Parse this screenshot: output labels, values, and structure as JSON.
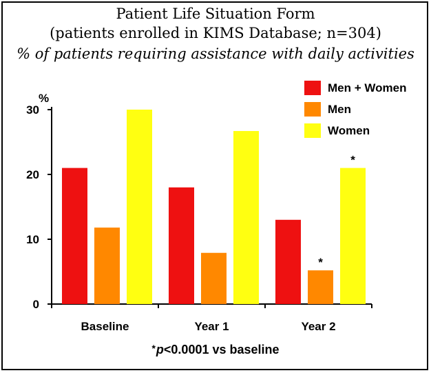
{
  "chart_data": {
    "type": "bar",
    "title": "Patient Life Situation Form",
    "subtitle": "(patients enrolled in KIMS Database; n=304)",
    "subtitle2": "% of patients requiring assistance with daily activities",
    "ylabel": "%",
    "xlabel": "",
    "categories": [
      "Baseline",
      "Year 1",
      "Year 2"
    ],
    "series": [
      {
        "name": "Men + Women",
        "color": "#ee1111",
        "values": [
          21,
          18,
          13
        ]
      },
      {
        "name": "Men",
        "color": "#ff8800",
        "values": [
          11.8,
          7.9,
          5.2
        ]
      },
      {
        "name": "Women",
        "color": "#ffff11",
        "values": [
          30,
          26.7,
          21
        ]
      }
    ],
    "ylim": [
      0,
      30
    ],
    "yticks": [
      "0",
      "10",
      "20",
      "30"
    ],
    "grid": false,
    "legend_position": "top-right",
    "annotations": [
      {
        "category": "Year 2",
        "series": "Men",
        "text": "*"
      },
      {
        "category": "Year 2",
        "series": "Women",
        "text": "*"
      }
    ],
    "footnote": {
      "star": "*",
      "p": "p",
      "rest": "<0.0001 vs baseline"
    }
  }
}
